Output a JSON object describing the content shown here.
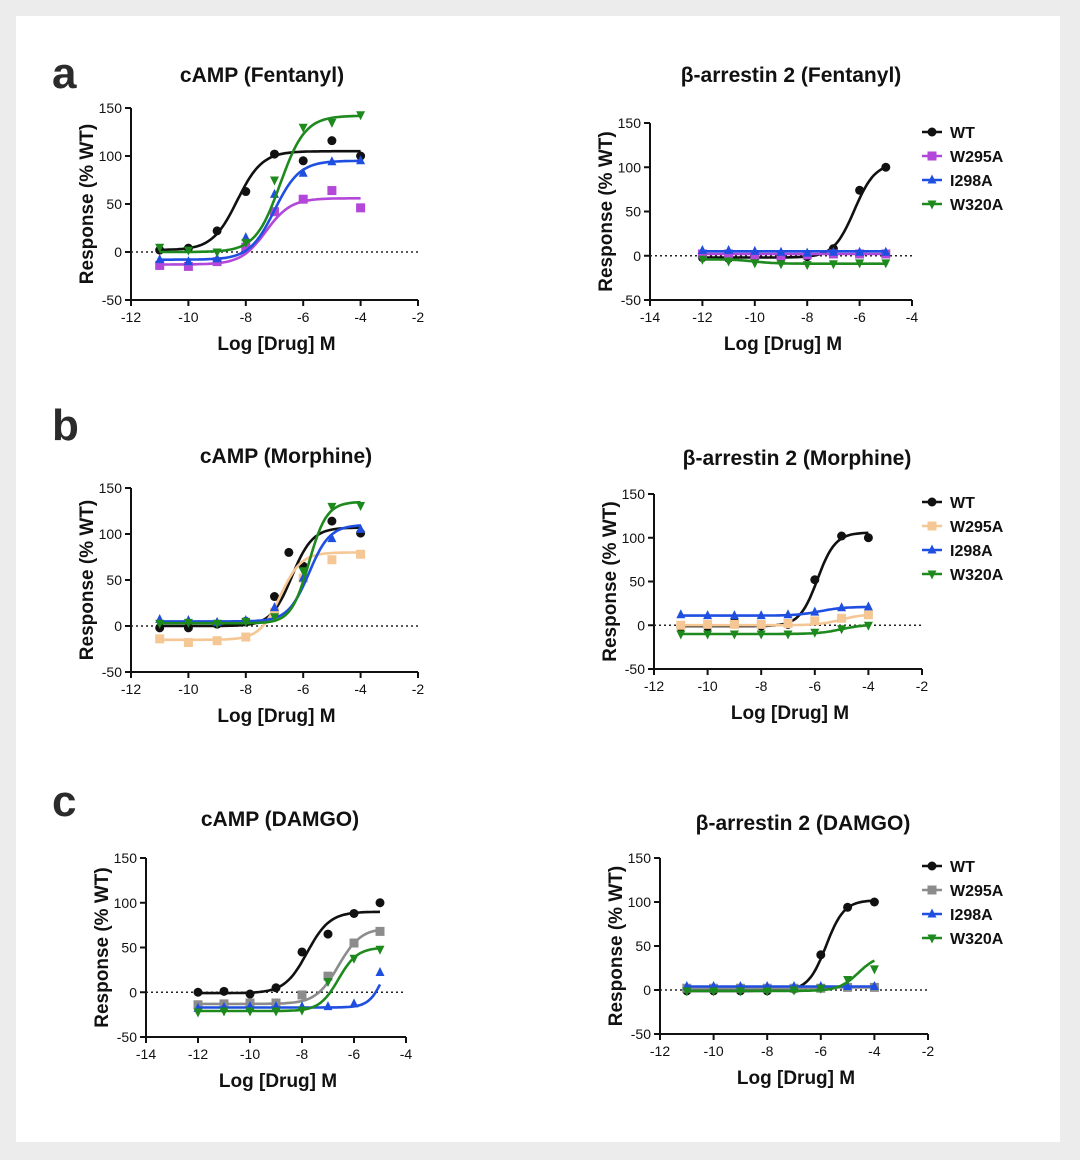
{
  "figure": {
    "panel_letters": [
      "a",
      "b",
      "c"
    ]
  },
  "colors": {
    "WT": "#111111",
    "W295A_fentanyl": "#b347d9",
    "W295A_morphine": "#f5c795",
    "W295A_damgo": "#8c8c8c",
    "I298A": "#1f4fe0",
    "W320A": "#1e8a1e"
  },
  "chart_data": [
    {
      "id": "camp-fentanyl",
      "type": "line",
      "title": "cAMP (Fentanyl)",
      "xlabel": "Log [Drug] M",
      "ylabel": "Response (% WT)",
      "xlim": [
        -12,
        -2
      ],
      "ylim": [
        -50,
        150
      ],
      "xticks": [
        -12,
        -10,
        -8,
        -6,
        -4,
        -2
      ],
      "yticks": [
        -50,
        0,
        50,
        100,
        150
      ],
      "legend": null,
      "series": [
        {
          "name": "WT",
          "color_key": "WT",
          "marker": "circle",
          "x": [
            -11,
            -10,
            -9,
            -8,
            -7,
            -6,
            -5,
            -4
          ],
          "y": [
            2,
            4,
            22,
            63,
            102,
            95,
            116,
            100
          ],
          "fit": {
            "bottom": 2,
            "top": 105,
            "logec50": -8.3,
            "hill": 1
          }
        },
        {
          "name": "W295A",
          "color_key": "W295A_fentanyl",
          "marker": "square",
          "x": [
            -11,
            -10,
            -9,
            -8,
            -7,
            -6,
            -5,
            -4
          ],
          "y": [
            -14,
            -15,
            -10,
            5,
            42,
            55,
            64,
            46
          ],
          "fit": {
            "bottom": -13,
            "top": 56,
            "logec50": -7.3,
            "hill": 1
          }
        },
        {
          "name": "I298A",
          "color_key": "I298A",
          "marker": "triangle-up",
          "x": [
            -11,
            -10,
            -9,
            -8,
            -7,
            -6,
            -5,
            -4
          ],
          "y": [
            -8,
            -10,
            -7,
            15,
            60,
            82,
            94,
            95
          ],
          "fit": {
            "bottom": -8,
            "top": 95,
            "logec50": -7.0,
            "hill": 1
          }
        },
        {
          "name": "W320A",
          "color_key": "W320A",
          "marker": "triangle-down",
          "x": [
            -11,
            -10,
            -9,
            -8,
            -7,
            -6,
            -5,
            -4
          ],
          "y": [
            5,
            2,
            0,
            10,
            75,
            130,
            135,
            143
          ],
          "fit": {
            "bottom": 0,
            "top": 142,
            "logec50": -6.8,
            "hill": 1
          }
        }
      ]
    },
    {
      "id": "arrestin-fentanyl",
      "type": "line",
      "title": "β-arrestin 2 (Fentanyl)",
      "xlabel": "Log [Drug] M",
      "ylabel": "Response (% WT)",
      "xlim": [
        -14,
        -4
      ],
      "ylim": [
        -50,
        150
      ],
      "xticks": [
        -14,
        -12,
        -10,
        -8,
        -6,
        -4
      ],
      "yticks": [
        -50,
        0,
        50,
        100,
        150
      ],
      "legend": "right",
      "series": [
        {
          "name": "WT",
          "color_key": "WT",
          "marker": "circle",
          "x": [
            -12,
            -11,
            -10,
            -9,
            -8,
            -7,
            -6,
            -5
          ],
          "y": [
            -2,
            -3,
            -2,
            -2,
            -1,
            8,
            74,
            100
          ],
          "fit": {
            "bottom": -2,
            "top": 105,
            "logec50": -6.2,
            "hill": 1.1
          }
        },
        {
          "name": "W295A",
          "color_key": "W295A_fentanyl",
          "marker": "square",
          "x": [
            -12,
            -11,
            -10,
            -9,
            -8,
            -7,
            -6,
            -5
          ],
          "y": [
            2,
            2,
            1,
            0,
            1,
            2,
            2,
            2
          ],
          "fit": {
            "bottom": 2,
            "top": 2,
            "logec50": -8,
            "hill": 1
          }
        },
        {
          "name": "I298A",
          "color_key": "I298A",
          "marker": "triangle-up",
          "x": [
            -12,
            -11,
            -10,
            -9,
            -8,
            -7,
            -6,
            -5
          ],
          "y": [
            6,
            6,
            5,
            4,
            3,
            4,
            4,
            4
          ],
          "fit": {
            "bottom": 5,
            "top": 5,
            "logec50": -8,
            "hill": 1
          }
        },
        {
          "name": "W320A",
          "color_key": "W320A",
          "marker": "triangle-down",
          "x": [
            -12,
            -11,
            -10,
            -9,
            -8,
            -7,
            -6,
            -5
          ],
          "y": [
            -4,
            -6,
            -8,
            -9,
            -10,
            -9,
            -8,
            -8
          ],
          "fit": {
            "bottom": -4,
            "top": -9,
            "logec50": -10,
            "hill": 1
          }
        }
      ]
    },
    {
      "id": "camp-morphine",
      "type": "line",
      "title": "cAMP (Morphine)",
      "xlabel": "Log [Drug] M",
      "ylabel": "Response (% WT)",
      "xlim": [
        -12,
        -2
      ],
      "ylim": [
        -50,
        150
      ],
      "xticks": [
        -12,
        -10,
        -8,
        -6,
        -4,
        -2
      ],
      "yticks": [
        -50,
        0,
        50,
        100,
        150
      ],
      "legend": null,
      "series": [
        {
          "name": "WT",
          "color_key": "WT",
          "marker": "circle",
          "x": [
            -11,
            -10,
            -9,
            -8,
            -7,
            -6.5,
            -6,
            -5,
            -4
          ],
          "y": [
            -2,
            -2,
            2,
            5,
            32,
            80,
            65,
            114,
            101
          ],
          "fit": {
            "bottom": 0,
            "top": 107,
            "logec50": -6.4,
            "hill": 1.2
          }
        },
        {
          "name": "W295A",
          "color_key": "W295A_morphine",
          "marker": "square",
          "x": [
            -11,
            -10,
            -9,
            -8,
            -7,
            -6,
            -5,
            -4
          ],
          "y": [
            -14,
            -18,
            -16,
            -12,
            15,
            52,
            72,
            78
          ],
          "fit": {
            "bottom": -15,
            "top": 80,
            "logec50": -6.8,
            "hill": 1.2
          }
        },
        {
          "name": "I298A",
          "color_key": "I298A",
          "marker": "triangle-up",
          "x": [
            -11,
            -10,
            -9,
            -8,
            -7,
            -6,
            -5,
            -4
          ],
          "y": [
            7,
            6,
            4,
            6,
            20,
            52,
            95,
            105
          ],
          "fit": {
            "bottom": 5,
            "top": 110,
            "logec50": -5.8,
            "hill": 1.2
          }
        },
        {
          "name": "W320A",
          "color_key": "W320A",
          "marker": "triangle-down",
          "x": [
            -11,
            -10,
            -9,
            -8,
            -7,
            -6,
            -5,
            -4
          ],
          "y": [
            3,
            4,
            3,
            5,
            10,
            60,
            130,
            131
          ],
          "fit": {
            "bottom": 3,
            "top": 135,
            "logec50": -5.8,
            "hill": 1.4
          }
        }
      ]
    },
    {
      "id": "arrestin-morphine",
      "type": "line",
      "title": "β-arrestin 2 (Morphine)",
      "xlabel": "Log [Drug] M",
      "ylabel": "Response (% WT)",
      "xlim": [
        -12,
        -2
      ],
      "ylim": [
        -50,
        150
      ],
      "xticks": [
        -12,
        -10,
        -8,
        -6,
        -4,
        -2
      ],
      "yticks": [
        -50,
        0,
        50,
        100,
        150
      ],
      "legend": "right",
      "series": [
        {
          "name": "WT",
          "color_key": "WT",
          "marker": "circle",
          "x": [
            -11,
            -10,
            -9,
            -8,
            -7,
            -6,
            -5,
            -4
          ],
          "y": [
            -2,
            -2,
            4,
            -1,
            1,
            52,
            102,
            100
          ],
          "fit": {
            "bottom": -1,
            "top": 106,
            "logec50": -5.9,
            "hill": 1.3
          }
        },
        {
          "name": "W295A",
          "color_key": "W295A_morphine",
          "marker": "square",
          "x": [
            -11,
            -10,
            -9,
            -8,
            -7,
            -6,
            -5,
            -4
          ],
          "y": [
            0,
            1,
            1,
            1,
            2,
            5,
            8,
            12
          ],
          "fit": {
            "bottom": 0,
            "top": 13,
            "logec50": -5.0,
            "hill": 1
          }
        },
        {
          "name": "I298A",
          "color_key": "I298A",
          "marker": "triangle-up",
          "x": [
            -11,
            -10,
            -9,
            -8,
            -7,
            -6,
            -5,
            -4
          ],
          "y": [
            12,
            11,
            11,
            11,
            12,
            15,
            20,
            21
          ],
          "fit": {
            "bottom": 11,
            "top": 21,
            "logec50": -5.8,
            "hill": 1
          }
        },
        {
          "name": "W320A",
          "color_key": "W320A",
          "marker": "triangle-down",
          "x": [
            -11,
            -10,
            -9,
            -8,
            -7,
            -6,
            -5,
            -4
          ],
          "y": [
            -10,
            -10,
            -10,
            -10,
            -10,
            -8,
            -4,
            0
          ],
          "fit": {
            "bottom": -10,
            "top": 1,
            "logec50": -5.0,
            "hill": 1
          }
        }
      ]
    },
    {
      "id": "camp-damgo",
      "type": "line",
      "title": "cAMP (DAMGO)",
      "xlabel": "Log [Drug] M",
      "ylabel": "Response (% WT)",
      "xlim": [
        -14,
        -4
      ],
      "ylim": [
        -50,
        150
      ],
      "xticks": [
        -14,
        -12,
        -10,
        -8,
        -6,
        -4
      ],
      "yticks": [
        -50,
        0,
        50,
        100,
        150
      ],
      "legend": null,
      "series": [
        {
          "name": "WT",
          "color_key": "WT",
          "marker": "circle",
          "x": [
            -12,
            -11,
            -10,
            -9,
            -8,
            -7,
            -6,
            -5
          ],
          "y": [
            0,
            1,
            -2,
            5,
            45,
            65,
            88,
            100
          ],
          "fit": {
            "bottom": -1,
            "top": 90,
            "logec50": -7.8,
            "hill": 1
          }
        },
        {
          "name": "W295A",
          "color_key": "W295A_damgo",
          "marker": "square",
          "x": [
            -12,
            -11,
            -10,
            -9,
            -8,
            -7,
            -6,
            -5
          ],
          "y": [
            -14,
            -13,
            -12,
            -12,
            -3,
            18,
            55,
            68
          ],
          "fit": {
            "bottom": -13,
            "top": 72,
            "logec50": -6.6,
            "hill": 1
          }
        },
        {
          "name": "I298A",
          "color_key": "I298A",
          "marker": "triangle-up",
          "x": [
            -12,
            -11,
            -10,
            -9,
            -8,
            -7,
            -6,
            -5
          ],
          "y": [
            -18,
            -17,
            -16,
            -16,
            -16,
            -16,
            -13,
            22
          ],
          "fit": {
            "bottom": -17,
            "top": 60,
            "logec50": -4.8,
            "hill": 1.5
          }
        },
        {
          "name": "W320A",
          "color_key": "W320A",
          "marker": "triangle-down",
          "x": [
            -12,
            -11,
            -10,
            -9,
            -8,
            -7,
            -6,
            -5
          ],
          "y": [
            -22,
            -21,
            -21,
            -21,
            -20,
            12,
            38,
            48
          ],
          "fit": {
            "bottom": -21,
            "top": 50,
            "logec50": -6.6,
            "hill": 1.2
          }
        }
      ]
    },
    {
      "id": "arrestin-damgo",
      "type": "line",
      "title": "β-arrestin 2 (DAMGO)",
      "xlabel": "Log [Drug] M",
      "ylabel": "Response (% WT)",
      "xlim": [
        -12,
        -2
      ],
      "ylim": [
        -50,
        150
      ],
      "xticks": [
        -12,
        -10,
        -8,
        -6,
        -4,
        -2
      ],
      "yticks": [
        -50,
        0,
        50,
        100,
        150
      ],
      "legend": "right",
      "series": [
        {
          "name": "WT",
          "color_key": "WT",
          "marker": "circle",
          "x": [
            -11,
            -10,
            -9,
            -8,
            -7,
            -6,
            -5,
            -4
          ],
          "y": [
            -1,
            -1,
            -1,
            -1,
            1,
            40,
            94,
            100
          ],
          "fit": {
            "bottom": -1,
            "top": 102,
            "logec50": -5.8,
            "hill": 1.3
          }
        },
        {
          "name": "W295A",
          "color_key": "W295A_damgo",
          "marker": "square",
          "x": [
            -11,
            -10,
            -9,
            -8,
            -7,
            -6,
            -5,
            -4
          ],
          "y": [
            2,
            2,
            2,
            2,
            2,
            2,
            3,
            3
          ],
          "fit": {
            "bottom": 2,
            "top": 3,
            "logec50": -6,
            "hill": 1
          }
        },
        {
          "name": "I298A",
          "color_key": "I298A",
          "marker": "triangle-up",
          "x": [
            -11,
            -10,
            -9,
            -8,
            -7,
            -6,
            -5,
            -4
          ],
          "y": [
            4,
            4,
            4,
            4,
            4,
            4,
            4,
            4
          ],
          "fit": {
            "bottom": 4,
            "top": 4,
            "logec50": -6,
            "hill": 1
          }
        },
        {
          "name": "W320A",
          "color_key": "W320A",
          "marker": "triangle-down",
          "x": [
            -11,
            -10,
            -9,
            -8,
            -7,
            -6,
            -5,
            -4
          ],
          "y": [
            -1,
            -1,
            -1,
            -1,
            0,
            2,
            12,
            24
          ],
          "fit": {
            "bottom": -1,
            "top": 40,
            "logec50": -4.6,
            "hill": 1.2
          }
        }
      ]
    }
  ]
}
